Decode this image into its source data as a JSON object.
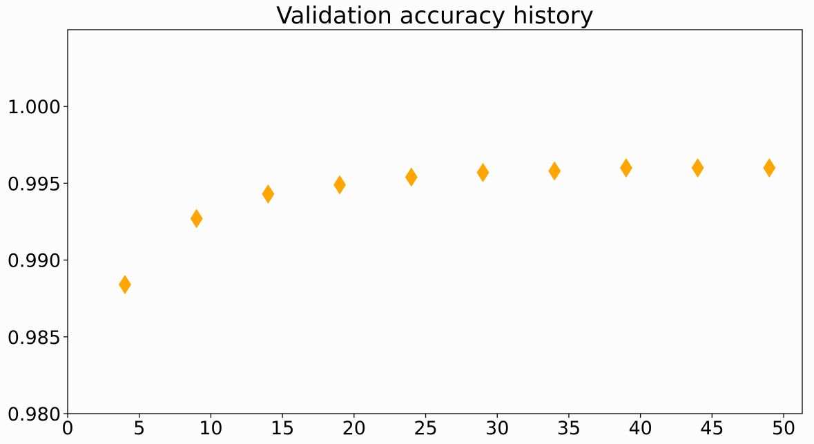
{
  "chart_data": {
    "type": "scatter",
    "title": "Validation accuracy history",
    "xlabel": "",
    "ylabel": "",
    "xlim": [
      0,
      51.3
    ],
    "ylim": [
      0.98,
      1.005
    ],
    "xticks": [
      0,
      5,
      10,
      15,
      20,
      25,
      30,
      35,
      40,
      45,
      50
    ],
    "xtick_labels": [
      "0",
      "5",
      "10",
      "15",
      "20",
      "25",
      "30",
      "35",
      "40",
      "45",
      "50"
    ],
    "yticks": [
      0.98,
      0.985,
      0.99,
      0.995,
      1.0
    ],
    "ytick_labels": [
      "0.980",
      "0.985",
      "0.990",
      "0.995",
      "1.000"
    ],
    "grid": false,
    "marker": "diamond",
    "color": "#ffa500",
    "series": [
      {
        "x": [
          4,
          9,
          14,
          19,
          24,
          29,
          34,
          39,
          44,
          49
        ],
        "y": [
          0.9884,
          0.9927,
          0.9943,
          0.9949,
          0.9954,
          0.9957,
          0.9958,
          0.996,
          0.996,
          0.996
        ]
      }
    ]
  }
}
